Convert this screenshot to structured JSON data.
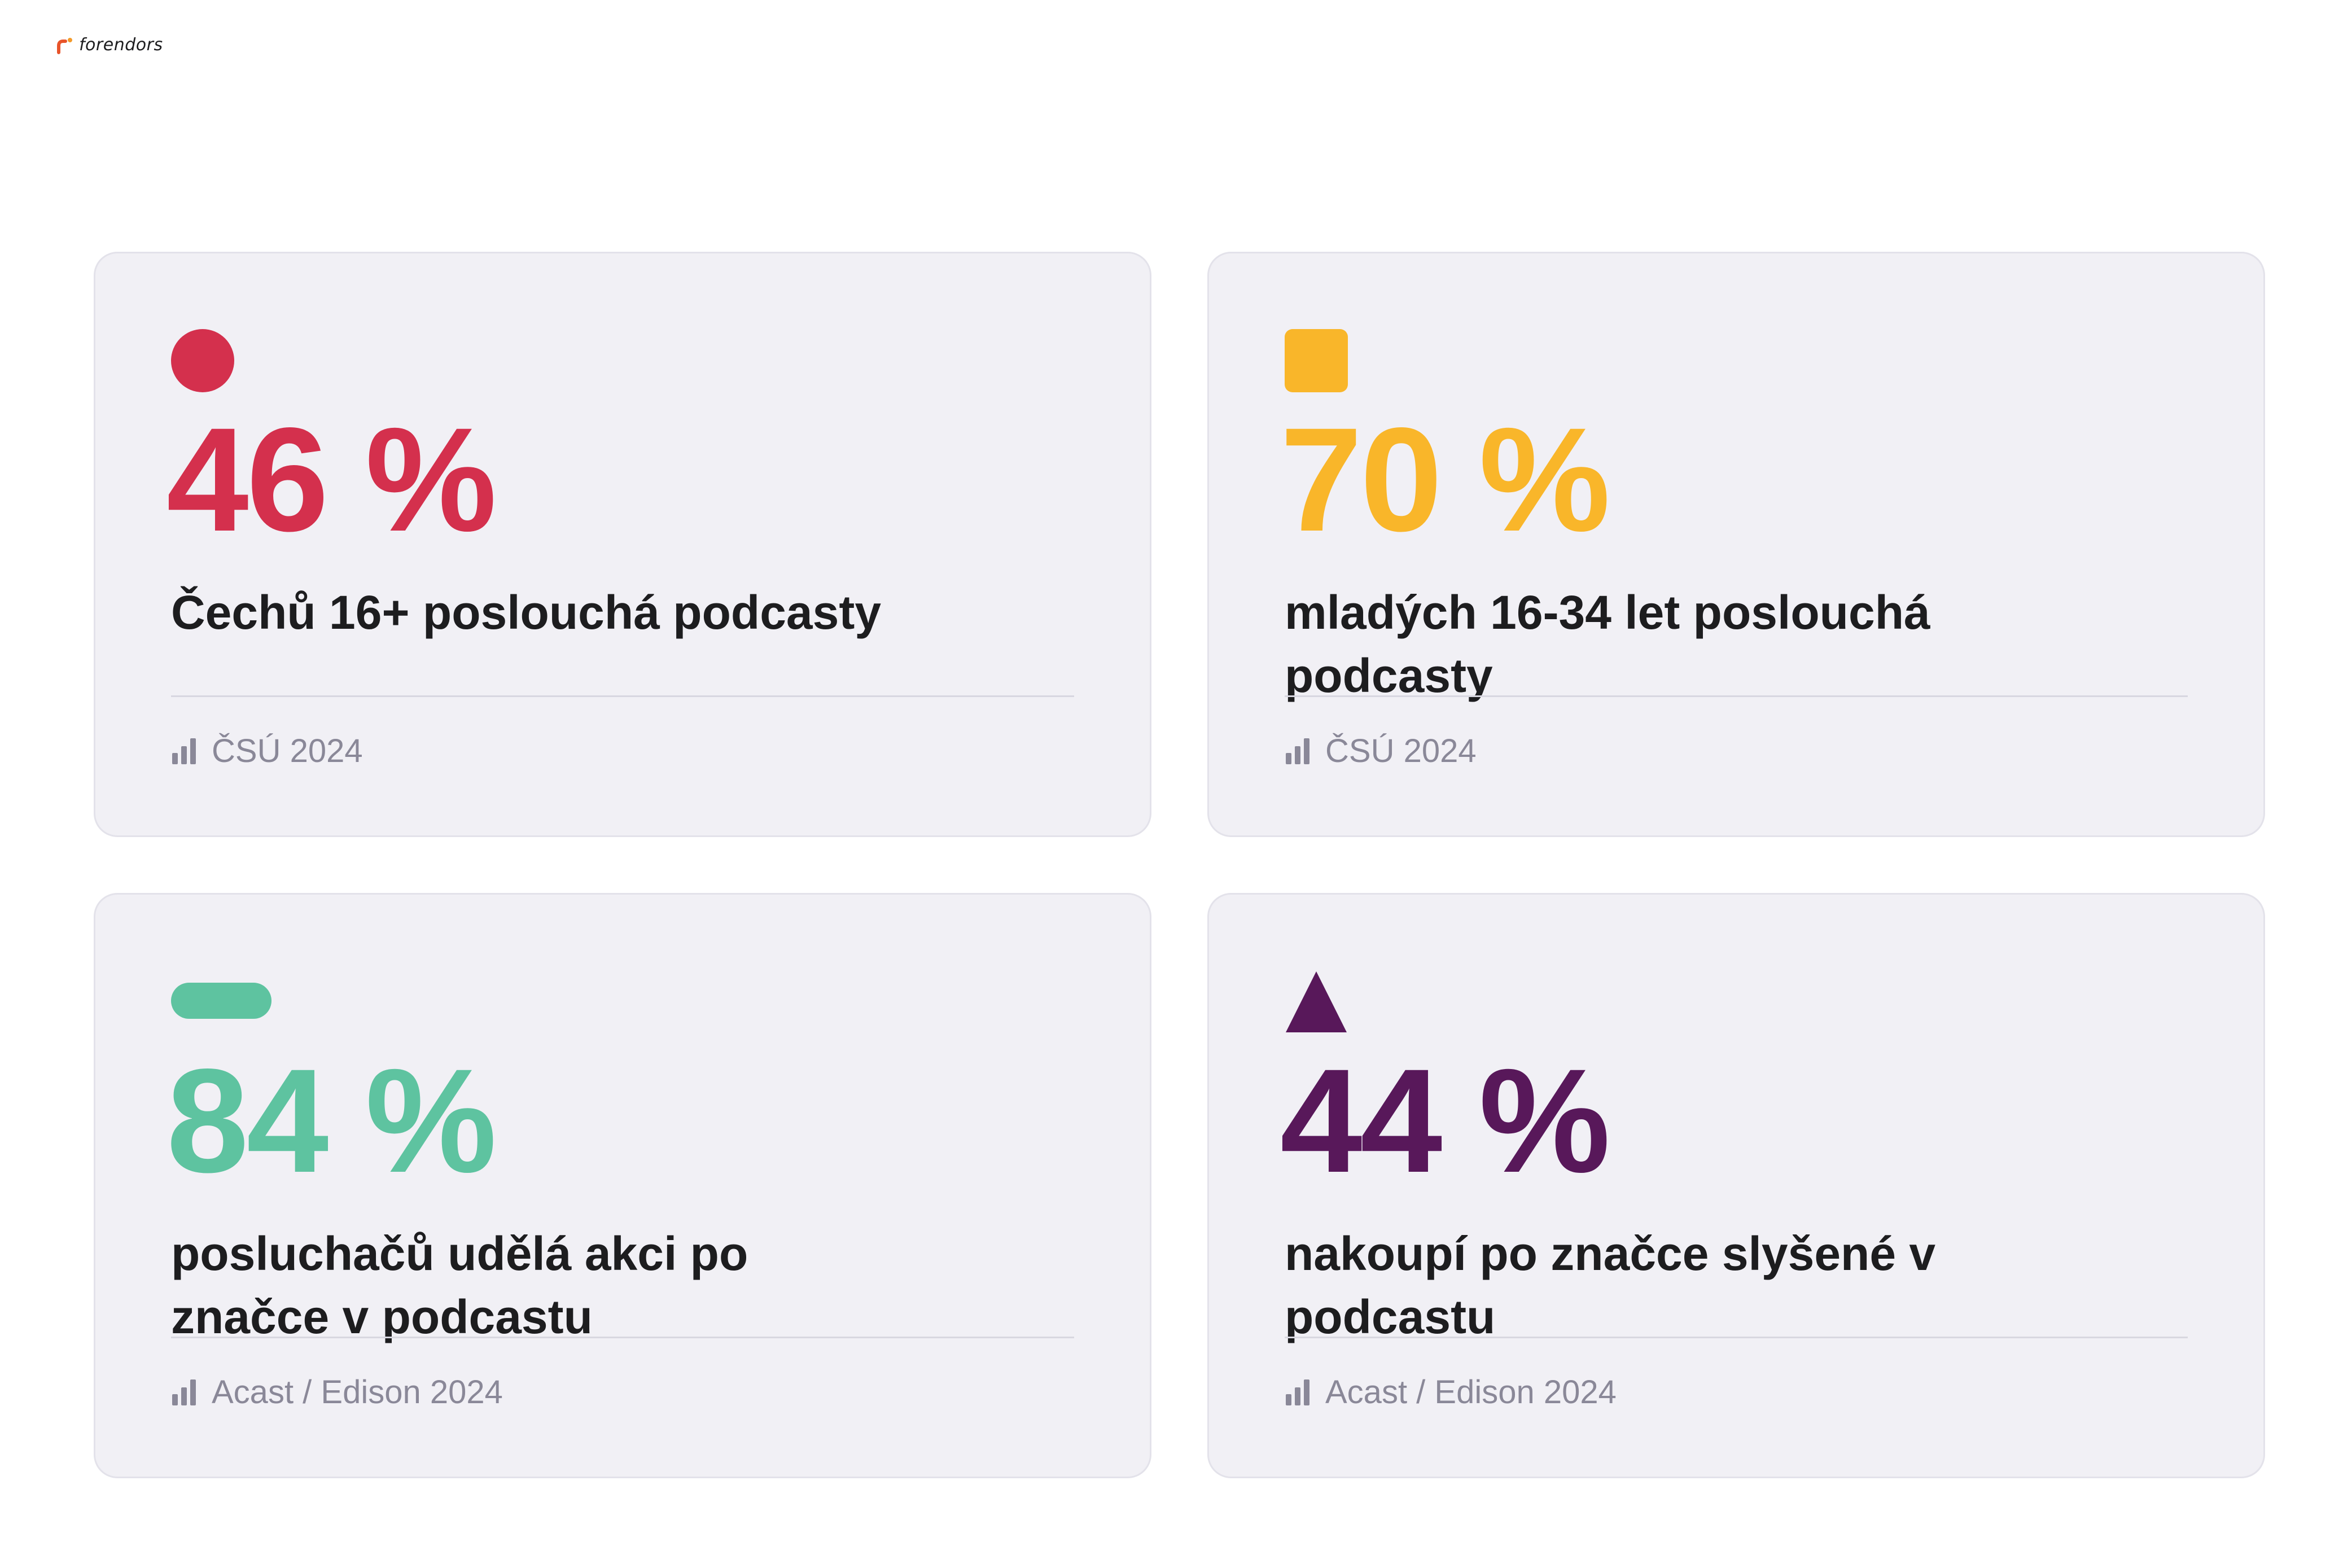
{
  "brand": {
    "name": "forendors"
  },
  "cards": [
    {
      "shape": "circle",
      "color": "#d4304d",
      "value": "46 %",
      "description": "Čechů 16+ poslouchá podcasty",
      "source": "ČSÚ 2024",
      "source_icon": "bar-chart-icon"
    },
    {
      "shape": "square",
      "color": "#f9b62a",
      "value": "70 %",
      "description": "mladých 16-34 let poslouchá podcasty",
      "source": "ČSÚ 2024",
      "source_icon": "bar-chart-icon"
    },
    {
      "shape": "pill",
      "color": "#5ec3a0",
      "value": "84 %",
      "description": "posluchačů udělá akci po značce v podcastu",
      "source": "Acast / Edison 2024",
      "source_icon": "bar-chart-icon"
    },
    {
      "shape": "triangle",
      "color": "#58185a",
      "value": "44 %",
      "description": "nakoupí po značce slyšené v podcastu",
      "source": "Acast / Edison 2024",
      "source_icon": "bar-chart-icon"
    }
  ],
  "colors": {
    "card_background": "#f1f0f5",
    "text_primary": "#1d1d1f",
    "text_muted": "#8a8898"
  }
}
